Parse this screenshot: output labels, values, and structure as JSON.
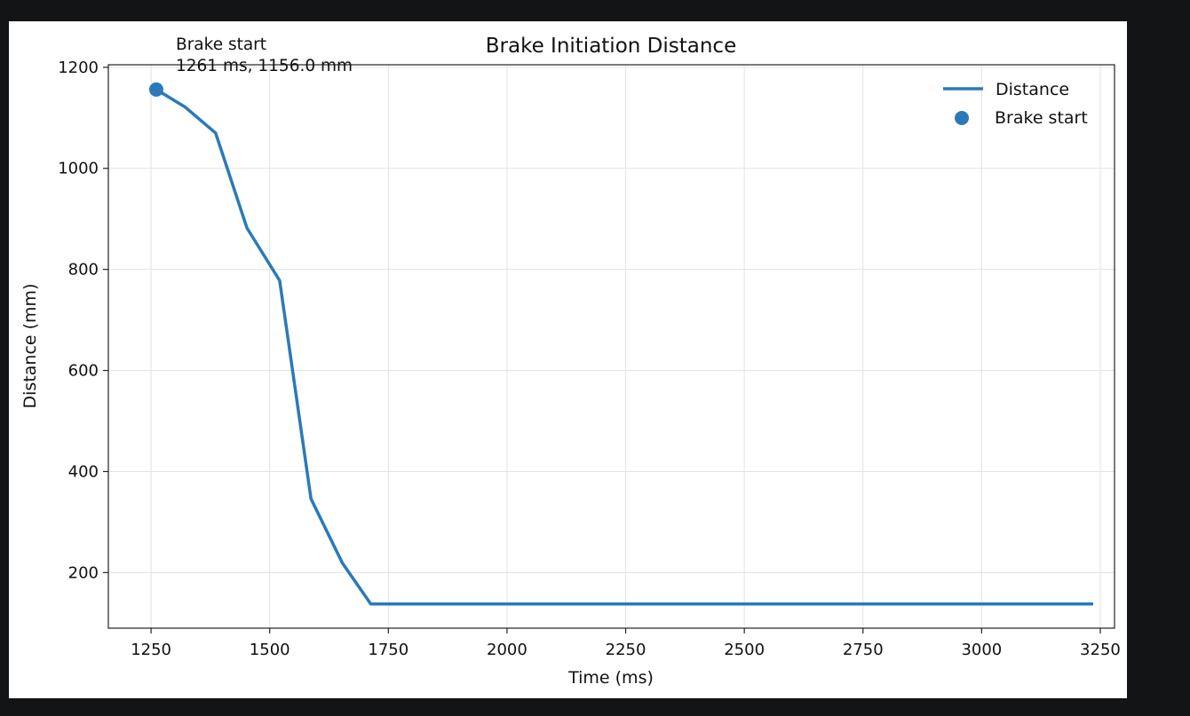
{
  "chart_data": {
    "type": "line",
    "title": "Brake Initiation Distance",
    "xlabel": "Time (ms)",
    "ylabel": "Distance (mm)",
    "xlim": [
      1160,
      3280
    ],
    "ylim": [
      90,
      1205
    ],
    "xticks": [
      1250,
      1500,
      1750,
      2000,
      2250,
      2500,
      2750,
      3000,
      3250
    ],
    "yticks": [
      200,
      400,
      600,
      800,
      1000,
      1200
    ],
    "grid": true,
    "legend": {
      "placement": "upper-right",
      "entries": [
        {
          "label": "Distance",
          "kind": "line"
        },
        {
          "label": "Brake start",
          "kind": "marker"
        }
      ]
    },
    "series": [
      {
        "name": "Distance",
        "color": "#2a7ab8",
        "x": [
          1261,
          1322,
          1386,
          1452,
          1521,
          1587,
          1653,
          1713,
          1780,
          1850,
          2000,
          2250,
          2500,
          2750,
          3000,
          3235
        ],
        "y": [
          1156,
          1121,
          1070,
          882,
          778,
          346,
          219,
          138,
          138,
          138,
          138,
          138,
          138,
          138,
          138,
          138
        ]
      }
    ],
    "markers": [
      {
        "name": "Brake start",
        "x": 1261,
        "y": 1156,
        "color": "#2a7ab8"
      }
    ],
    "annotation": {
      "line1": "Brake start",
      "line2": "1261 ms, 1156.0 mm",
      "x": 1261,
      "y": 1156
    }
  }
}
